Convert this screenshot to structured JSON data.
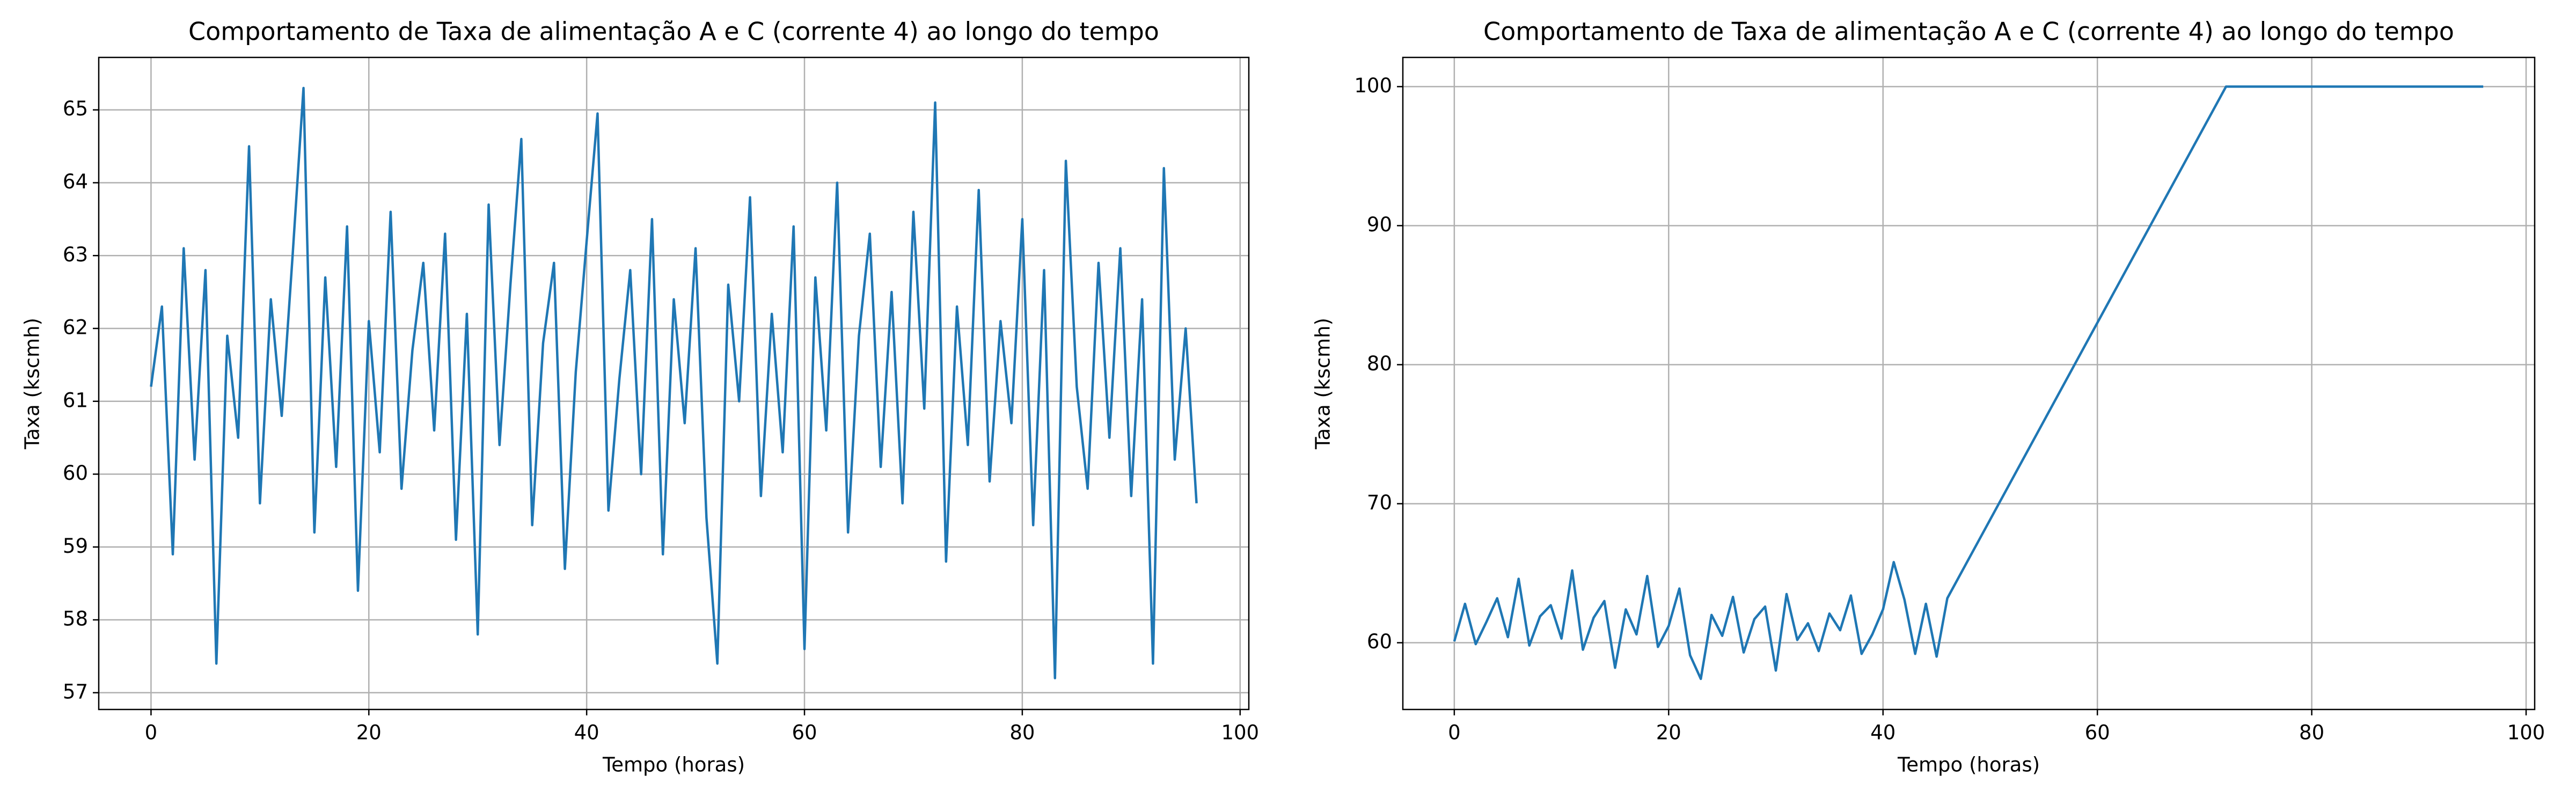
{
  "chart_data": [
    {
      "type": "line",
      "title": "Comportamento de Taxa de alimentação A e C (corrente 4) ao longo do tempo",
      "x_label": "Tempo (horas)",
      "y_label": "Taxa (kscmh)",
      "x": [
        0,
        1,
        2,
        3,
        4,
        5,
        6,
        7,
        8,
        9,
        10,
        11,
        12,
        13,
        14,
        15,
        16,
        17,
        18,
        19,
        20,
        21,
        22,
        23,
        24,
        25,
        26,
        27,
        28,
        29,
        30,
        31,
        32,
        33,
        34,
        35,
        36,
        37,
        38,
        39,
        40,
        41,
        42,
        43,
        44,
        45,
        46,
        47,
        48,
        49,
        50,
        51,
        52,
        53,
        54,
        55,
        56,
        57,
        58,
        59,
        60,
        61,
        62,
        63,
        64,
        65,
        66,
        67,
        68,
        69,
        70,
        71,
        72,
        73,
        74,
        75,
        76,
        77,
        78,
        79,
        80,
        81,
        82,
        83,
        84,
        85,
        86,
        87,
        88,
        89,
        90,
        91,
        92,
        93,
        94,
        95,
        96
      ],
      "series": [
        {
          "name": "Taxa",
          "color": "#1f77b4",
          "values": [
            61.2,
            62.3,
            58.9,
            63.1,
            60.2,
            62.8,
            57.4,
            61.9,
            60.5,
            64.5,
            59.6,
            62.4,
            60.8,
            63.0,
            65.3,
            59.2,
            62.7,
            60.1,
            63.4,
            58.4,
            62.1,
            60.3,
            63.6,
            59.8,
            61.7,
            62.9,
            60.6,
            63.3,
            59.1,
            62.2,
            57.8,
            63.7,
            60.4,
            62.6,
            64.6,
            59.3,
            61.8,
            62.9,
            58.7,
            61.4,
            63.2,
            64.95,
            59.5,
            61.3,
            62.8,
            60.0,
            63.5,
            58.9,
            62.4,
            60.7,
            63.1,
            59.4,
            57.4,
            62.6,
            61.0,
            63.8,
            59.7,
            62.2,
            60.3,
            63.4,
            57.6,
            62.7,
            60.6,
            64.0,
            59.2,
            61.9,
            63.3,
            60.1,
            62.5,
            59.6,
            63.6,
            60.9,
            65.1,
            58.8,
            62.3,
            60.4,
            63.9,
            59.9,
            62.1,
            60.7,
            63.5,
            59.3,
            62.8,
            57.2,
            64.3,
            61.2,
            59.8,
            62.9,
            60.5,
            63.1,
            59.7,
            62.4,
            57.4,
            64.2,
            60.2,
            62.0,
            59.6
          ]
        }
      ],
      "xlim": [
        -4.8,
        100.8
      ],
      "xticks": [
        0,
        20,
        40,
        60,
        80,
        100
      ],
      "ylim": [
        56.77,
        65.72
      ],
      "yticks": [
        57,
        58,
        59,
        60,
        61,
        62,
        63,
        64,
        65
      ],
      "grid": true
    },
    {
      "type": "line",
      "title": "Comportamento de Taxa de alimentação A e C (corrente 4) ao longo do tempo",
      "x_label": "Tempo (horas)",
      "y_label": "Taxa (kscmh)",
      "x": [
        0,
        1,
        2,
        3,
        4,
        5,
        6,
        7,
        8,
        9,
        10,
        11,
        12,
        13,
        14,
        15,
        16,
        17,
        18,
        19,
        20,
        21,
        22,
        23,
        24,
        25,
        26,
        27,
        28,
        29,
        30,
        31,
        32,
        33,
        34,
        35,
        36,
        37,
        38,
        39,
        40,
        41,
        42,
        43,
        44,
        45,
        46,
        72,
        96
      ],
      "series": [
        {
          "name": "Taxa",
          "color": "#1f77b4",
          "values": [
            60.1,
            62.8,
            59.9,
            61.5,
            63.2,
            60.4,
            64.6,
            59.8,
            61.9,
            62.7,
            60.3,
            65.2,
            59.5,
            61.8,
            63.0,
            58.2,
            62.4,
            60.6,
            64.8,
            59.7,
            61.2,
            63.9,
            59.1,
            57.4,
            62.0,
            60.5,
            63.3,
            59.3,
            61.7,
            62.6,
            58.0,
            63.5,
            60.2,
            61.4,
            59.4,
            62.1,
            60.9,
            63.4,
            59.2,
            60.6,
            62.4,
            65.8,
            63.1,
            59.2,
            62.8,
            59.0,
            63.2,
            100,
            100
          ]
        }
      ],
      "xlim": [
        -4.8,
        100.8
      ],
      "xticks": [
        0,
        20,
        40,
        60,
        80,
        100
      ],
      "ylim": [
        55.2,
        102.1
      ],
      "yticks": [
        60,
        70,
        80,
        90,
        100
      ],
      "grid": true
    }
  ]
}
